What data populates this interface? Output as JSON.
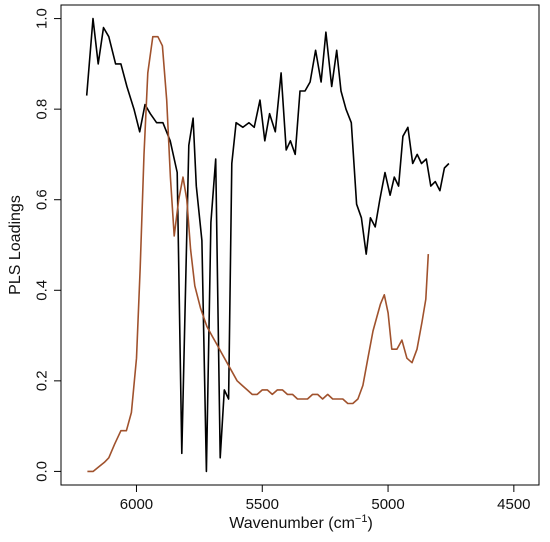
{
  "chart_data": {
    "type": "line",
    "title": "",
    "xlabel": "Wavenumber (cm",
    "xlabel_sup": "−1",
    "xlabel_close": ")",
    "ylabel": "PLS Loadings",
    "xlim": [
      6300,
      4400
    ],
    "ylim": [
      -0.03,
      1.03
    ],
    "x_reversed": true,
    "x_ticks": [
      6000,
      5500,
      5000,
      4500
    ],
    "x_tick_labels": [
      "6000",
      "5500",
      "5000",
      "4500"
    ],
    "y_ticks": [
      0.0,
      0.2,
      0.4,
      0.6,
      0.8,
      1.0
    ],
    "y_tick_labels": [
      "0.0",
      "0.2",
      "0.4",
      "0.6",
      "0.8",
      "1.0"
    ],
    "grid": false,
    "series": [
      {
        "color": "#000000",
        "points": [
          [
            6198,
            0.83
          ],
          [
            6173,
            1.0
          ],
          [
            6152,
            0.9
          ],
          [
            6131,
            0.98
          ],
          [
            6110,
            0.96
          ],
          [
            6083,
            0.9
          ],
          [
            6062,
            0.9
          ],
          [
            6038,
            0.85
          ],
          [
            6010,
            0.8
          ],
          [
            5987,
            0.75
          ],
          [
            5966,
            0.81
          ],
          [
            5945,
            0.79
          ],
          [
            5920,
            0.77
          ],
          [
            5895,
            0.77
          ],
          [
            5866,
            0.73
          ],
          [
            5838,
            0.66
          ],
          [
            5820,
            0.04
          ],
          [
            5792,
            0.72
          ],
          [
            5775,
            0.78
          ],
          [
            5762,
            0.63
          ],
          [
            5740,
            0.51
          ],
          [
            5722,
            0.0
          ],
          [
            5704,
            0.55
          ],
          [
            5685,
            0.69
          ],
          [
            5667,
            0.03
          ],
          [
            5651,
            0.18
          ],
          [
            5634,
            0.16
          ],
          [
            5621,
            0.68
          ],
          [
            5604,
            0.77
          ],
          [
            5577,
            0.76
          ],
          [
            5553,
            0.77
          ],
          [
            5532,
            0.76
          ],
          [
            5509,
            0.82
          ],
          [
            5490,
            0.73
          ],
          [
            5471,
            0.79
          ],
          [
            5448,
            0.75
          ],
          [
            5425,
            0.88
          ],
          [
            5405,
            0.71
          ],
          [
            5388,
            0.73
          ],
          [
            5369,
            0.7
          ],
          [
            5350,
            0.84
          ],
          [
            5330,
            0.84
          ],
          [
            5310,
            0.86
          ],
          [
            5288,
            0.93
          ],
          [
            5266,
            0.86
          ],
          [
            5247,
            0.97
          ],
          [
            5224,
            0.85
          ],
          [
            5204,
            0.93
          ],
          [
            5187,
            0.84
          ],
          [
            5167,
            0.8
          ],
          [
            5146,
            0.77
          ],
          [
            5125,
            0.59
          ],
          [
            5106,
            0.56
          ],
          [
            5087,
            0.48
          ],
          [
            5070,
            0.56
          ],
          [
            5051,
            0.54
          ],
          [
            5033,
            0.6
          ],
          [
            5012,
            0.66
          ],
          [
            4992,
            0.61
          ],
          [
            4975,
            0.65
          ],
          [
            4958,
            0.63
          ],
          [
            4941,
            0.74
          ],
          [
            4921,
            0.76
          ],
          [
            4902,
            0.68
          ],
          [
            4884,
            0.7
          ],
          [
            4867,
            0.68
          ],
          [
            4848,
            0.69
          ],
          [
            4830,
            0.63
          ],
          [
            4812,
            0.64
          ],
          [
            4794,
            0.62
          ],
          [
            4776,
            0.67
          ],
          [
            4758,
            0.68
          ]
        ]
      },
      {
        "color": "#a0522d",
        "points": [
          [
            6195,
            0.0
          ],
          [
            6172,
            0.0
          ],
          [
            6150,
            0.01
          ],
          [
            6128,
            0.02
          ],
          [
            6110,
            0.03
          ],
          [
            6087,
            0.06
          ],
          [
            6062,
            0.09
          ],
          [
            6040,
            0.09
          ],
          [
            6020,
            0.13
          ],
          [
            6000,
            0.25
          ],
          [
            5985,
            0.45
          ],
          [
            5970,
            0.7
          ],
          [
            5955,
            0.88
          ],
          [
            5935,
            0.96
          ],
          [
            5915,
            0.96
          ],
          [
            5897,
            0.94
          ],
          [
            5880,
            0.82
          ],
          [
            5865,
            0.65
          ],
          [
            5850,
            0.52
          ],
          [
            5832,
            0.6
          ],
          [
            5815,
            0.65
          ],
          [
            5800,
            0.6
          ],
          [
            5785,
            0.49
          ],
          [
            5768,
            0.41
          ],
          [
            5745,
            0.36
          ],
          [
            5720,
            0.32
          ],
          [
            5700,
            0.3
          ],
          [
            5680,
            0.28
          ],
          [
            5660,
            0.26
          ],
          [
            5640,
            0.24
          ],
          [
            5620,
            0.22
          ],
          [
            5600,
            0.2
          ],
          [
            5580,
            0.19
          ],
          [
            5560,
            0.18
          ],
          [
            5540,
            0.17
          ],
          [
            5520,
            0.17
          ],
          [
            5500,
            0.18
          ],
          [
            5480,
            0.18
          ],
          [
            5460,
            0.17
          ],
          [
            5440,
            0.18
          ],
          [
            5420,
            0.18
          ],
          [
            5400,
            0.17
          ],
          [
            5380,
            0.17
          ],
          [
            5360,
            0.16
          ],
          [
            5340,
            0.16
          ],
          [
            5320,
            0.16
          ],
          [
            5300,
            0.17
          ],
          [
            5280,
            0.17
          ],
          [
            5260,
            0.16
          ],
          [
            5240,
            0.17
          ],
          [
            5220,
            0.16
          ],
          [
            5200,
            0.16
          ],
          [
            5180,
            0.16
          ],
          [
            5160,
            0.15
          ],
          [
            5140,
            0.15
          ],
          [
            5120,
            0.16
          ],
          [
            5100,
            0.19
          ],
          [
            5080,
            0.25
          ],
          [
            5060,
            0.31
          ],
          [
            5045,
            0.34
          ],
          [
            5030,
            0.37
          ],
          [
            5015,
            0.39
          ],
          [
            5000,
            0.35
          ],
          [
            4985,
            0.27
          ],
          [
            4965,
            0.27
          ],
          [
            4945,
            0.29
          ],
          [
            4925,
            0.25
          ],
          [
            4905,
            0.24
          ],
          [
            4885,
            0.27
          ],
          [
            4865,
            0.33
          ],
          [
            4850,
            0.38
          ],
          [
            4840,
            0.48
          ]
        ]
      }
    ]
  }
}
